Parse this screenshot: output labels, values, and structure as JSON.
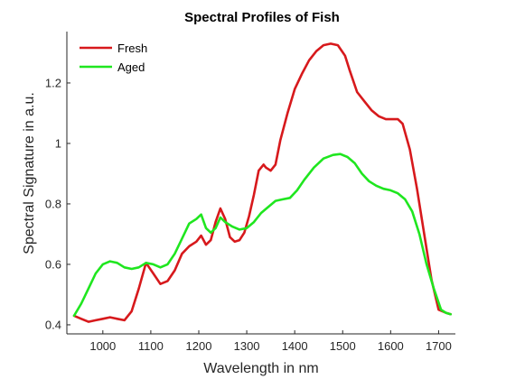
{
  "chart_data": {
    "type": "line",
    "title": "Spectral Profiles of Fish",
    "xlabel": "Wavelength in nm",
    "ylabel": "Spectral Signature in a.u.",
    "xlim": [
      925,
      1735
    ],
    "ylim": [
      0.37,
      1.37
    ],
    "xticks": [
      1000,
      1100,
      1200,
      1300,
      1400,
      1500,
      1600,
      1700
    ],
    "yticks": [
      0.4,
      0.6,
      0.8,
      1,
      1.2
    ],
    "ytick_labels": [
      "0.4",
      "0.6",
      "0.8",
      "1",
      "1.2"
    ],
    "grid": false,
    "legend_position": "top-left",
    "series": [
      {
        "name": "Fresh",
        "color": "#d7191c",
        "x": [
          940,
          955,
          970,
          985,
          1000,
          1015,
          1030,
          1045,
          1060,
          1075,
          1090,
          1105,
          1120,
          1135,
          1150,
          1165,
          1180,
          1195,
          1205,
          1215,
          1225,
          1235,
          1245,
          1255,
          1265,
          1275,
          1285,
          1295,
          1305,
          1315,
          1325,
          1335,
          1340,
          1350,
          1360,
          1370,
          1385,
          1400,
          1415,
          1430,
          1445,
          1460,
          1475,
          1490,
          1505,
          1515,
          1530,
          1545,
          1560,
          1575,
          1590,
          1605,
          1615,
          1625,
          1640,
          1655,
          1670,
          1685,
          1700,
          1715,
          1725
        ],
        "values": [
          0.43,
          0.42,
          0.41,
          0.415,
          0.42,
          0.425,
          0.42,
          0.415,
          0.445,
          0.52,
          0.605,
          0.57,
          0.535,
          0.545,
          0.58,
          0.635,
          0.66,
          0.675,
          0.695,
          0.665,
          0.68,
          0.74,
          0.785,
          0.75,
          0.69,
          0.675,
          0.68,
          0.705,
          0.76,
          0.83,
          0.91,
          0.93,
          0.92,
          0.91,
          0.93,
          1.01,
          1.1,
          1.18,
          1.23,
          1.275,
          1.305,
          1.325,
          1.33,
          1.325,
          1.29,
          1.24,
          1.17,
          1.14,
          1.11,
          1.09,
          1.08,
          1.08,
          1.08,
          1.065,
          0.98,
          0.85,
          0.7,
          0.55,
          0.45,
          0.44,
          0.435
        ]
      },
      {
        "name": "Aged",
        "color": "#1fe61f",
        "x": [
          940,
          955,
          970,
          985,
          1000,
          1015,
          1030,
          1045,
          1060,
          1075,
          1090,
          1105,
          1120,
          1135,
          1150,
          1165,
          1180,
          1195,
          1205,
          1215,
          1225,
          1235,
          1245,
          1255,
          1270,
          1285,
          1300,
          1315,
          1330,
          1345,
          1360,
          1375,
          1390,
          1405,
          1420,
          1440,
          1460,
          1480,
          1495,
          1510,
          1525,
          1540,
          1555,
          1570,
          1585,
          1600,
          1615,
          1630,
          1645,
          1660,
          1675,
          1690,
          1705,
          1715,
          1725
        ],
        "values": [
          0.43,
          0.47,
          0.52,
          0.57,
          0.6,
          0.61,
          0.605,
          0.59,
          0.585,
          0.59,
          0.605,
          0.6,
          0.59,
          0.6,
          0.635,
          0.685,
          0.735,
          0.75,
          0.765,
          0.72,
          0.705,
          0.72,
          0.755,
          0.74,
          0.725,
          0.715,
          0.72,
          0.74,
          0.77,
          0.79,
          0.81,
          0.815,
          0.82,
          0.845,
          0.88,
          0.92,
          0.95,
          0.962,
          0.965,
          0.955,
          0.935,
          0.9,
          0.875,
          0.86,
          0.85,
          0.845,
          0.835,
          0.815,
          0.775,
          0.7,
          0.6,
          0.52,
          0.45,
          0.44,
          0.435
        ]
      }
    ]
  }
}
